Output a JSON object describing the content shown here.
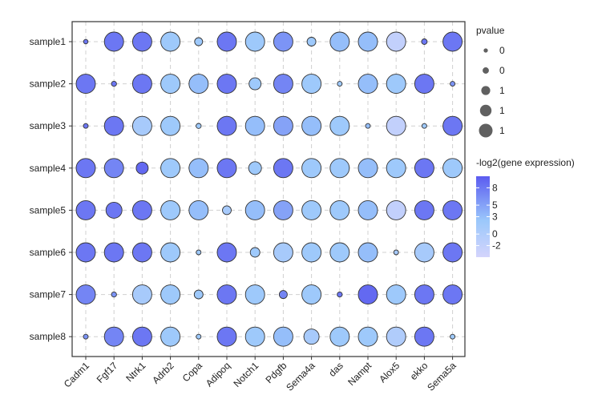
{
  "chart_data": {
    "type": "dot",
    "title": "",
    "xlabel": "",
    "ylabel": "",
    "genes": [
      "Cadm1",
      "Fgf17",
      "Ntrk1",
      "Adrb2",
      "Copa",
      "Adipoq",
      "Notch1",
      "Pdgfb",
      "Sema4a",
      "das",
      "Nampt",
      "Alox5",
      "ekko",
      "Sema5a"
    ],
    "samples": [
      "sample1",
      "sample2",
      "sample3",
      "sample4",
      "sample5",
      "sample6",
      "sample7",
      "sample8"
    ],
    "size_legend": {
      "title": "pvalue",
      "labels": [
        "0",
        "0",
        "1",
        "1",
        "1"
      ],
      "values": [
        0.1,
        0.3,
        0.55,
        0.8,
        1.0
      ]
    },
    "color_legend": {
      "title": "-log2(gene expression)",
      "ticks": [
        8,
        5,
        3,
        0,
        -2
      ],
      "tick_labels": [
        "8",
        "5",
        "3",
        "0",
        "-2"
      ],
      "range": [
        -4,
        10
      ],
      "low_color": "#d4d4fc",
      "mid_color": "#9bc8fb",
      "high_color": "#5b5bf0"
    },
    "grid": true,
    "dots": [
      {
        "sample": "sample1",
        "gene": "Cadm1",
        "size": 0.08,
        "value": 8
      },
      {
        "sample": "sample1",
        "gene": "Fgf17",
        "size": 1.0,
        "value": 8
      },
      {
        "sample": "sample1",
        "gene": "Ntrk1",
        "size": 1.0,
        "value": 8
      },
      {
        "sample": "sample1",
        "gene": "Adrb2",
        "size": 1.0,
        "value": 2
      },
      {
        "sample": "sample1",
        "gene": "Copa",
        "size": 0.3,
        "value": 2
      },
      {
        "sample": "sample1",
        "gene": "Adipoq",
        "size": 1.0,
        "value": 8
      },
      {
        "sample": "sample1",
        "gene": "Notch1",
        "size": 1.0,
        "value": 2
      },
      {
        "sample": "sample1",
        "gene": "Pdgfb",
        "size": 1.0,
        "value": 6
      },
      {
        "sample": "sample1",
        "gene": "Sema4a",
        "size": 0.35,
        "value": 2
      },
      {
        "sample": "sample1",
        "gene": "das",
        "size": 1.0,
        "value": 3
      },
      {
        "sample": "sample1",
        "gene": "Nampt",
        "size": 1.0,
        "value": 3
      },
      {
        "sample": "sample1",
        "gene": "Alox5",
        "size": 1.0,
        "value": -2
      },
      {
        "sample": "sample1",
        "gene": "ekko",
        "size": 0.15,
        "value": 8
      },
      {
        "sample": "sample1",
        "gene": "Sema5a",
        "size": 1.0,
        "value": 8
      },
      {
        "sample": "sample2",
        "gene": "Cadm1",
        "size": 1.0,
        "value": 8
      },
      {
        "sample": "sample2",
        "gene": "Fgf17",
        "size": 0.12,
        "value": 8
      },
      {
        "sample": "sample2",
        "gene": "Ntrk1",
        "size": 1.0,
        "value": 8
      },
      {
        "sample": "sample2",
        "gene": "Adrb2",
        "size": 1.0,
        "value": 2
      },
      {
        "sample": "sample2",
        "gene": "Copa",
        "size": 1.0,
        "value": 3
      },
      {
        "sample": "sample2",
        "gene": "Adipoq",
        "size": 1.0,
        "value": 8
      },
      {
        "sample": "sample2",
        "gene": "Notch1",
        "size": 0.55,
        "value": 2
      },
      {
        "sample": "sample2",
        "gene": "Pdgfb",
        "size": 1.0,
        "value": 7
      },
      {
        "sample": "sample2",
        "gene": "Sema4a",
        "size": 1.0,
        "value": 2
      },
      {
        "sample": "sample2",
        "gene": "das",
        "size": 0.1,
        "value": 2
      },
      {
        "sample": "sample2",
        "gene": "Nampt",
        "size": 1.0,
        "value": 3
      },
      {
        "sample": "sample2",
        "gene": "Alox5",
        "size": 1.0,
        "value": 2
      },
      {
        "sample": "sample2",
        "gene": "ekko",
        "size": 1.0,
        "value": 8
      },
      {
        "sample": "sample2",
        "gene": "Sema5a",
        "size": 0.1,
        "value": 6
      },
      {
        "sample": "sample3",
        "gene": "Cadm1",
        "size": 0.1,
        "value": 8
      },
      {
        "sample": "sample3",
        "gene": "Fgf17",
        "size": 1.0,
        "value": 8
      },
      {
        "sample": "sample3",
        "gene": "Ntrk1",
        "size": 1.0,
        "value": 1
      },
      {
        "sample": "sample3",
        "gene": "Adrb2",
        "size": 1.0,
        "value": 2
      },
      {
        "sample": "sample3",
        "gene": "Copa",
        "size": 0.12,
        "value": 2
      },
      {
        "sample": "sample3",
        "gene": "Adipoq",
        "size": 1.0,
        "value": 8
      },
      {
        "sample": "sample3",
        "gene": "Notch1",
        "size": 1.0,
        "value": 3
      },
      {
        "sample": "sample3",
        "gene": "Pdgfb",
        "size": 1.0,
        "value": 5
      },
      {
        "sample": "sample3",
        "gene": "Sema4a",
        "size": 1.0,
        "value": 3
      },
      {
        "sample": "sample3",
        "gene": "das",
        "size": 1.0,
        "value": 2
      },
      {
        "sample": "sample3",
        "gene": "Nampt",
        "size": 0.1,
        "value": 3
      },
      {
        "sample": "sample3",
        "gene": "Alox5",
        "size": 1.0,
        "value": -2
      },
      {
        "sample": "sample3",
        "gene": "ekko",
        "size": 0.1,
        "value": 2
      },
      {
        "sample": "sample3",
        "gene": "Sema5a",
        "size": 1.0,
        "value": 8
      },
      {
        "sample": "sample4",
        "gene": "Cadm1",
        "size": 1.0,
        "value": 8
      },
      {
        "sample": "sample4",
        "gene": "Fgf17",
        "size": 1.0,
        "value": 7
      },
      {
        "sample": "sample4",
        "gene": "Ntrk1",
        "size": 0.55,
        "value": 9
      },
      {
        "sample": "sample4",
        "gene": "Adrb2",
        "size": 1.0,
        "value": 2
      },
      {
        "sample": "sample4",
        "gene": "Copa",
        "size": 1.0,
        "value": 3
      },
      {
        "sample": "sample4",
        "gene": "Adipoq",
        "size": 1.0,
        "value": 8
      },
      {
        "sample": "sample4",
        "gene": "Notch1",
        "size": 0.6,
        "value": 2
      },
      {
        "sample": "sample4",
        "gene": "Pdgfb",
        "size": 1.0,
        "value": 8
      },
      {
        "sample": "sample4",
        "gene": "Sema4a",
        "size": 1.0,
        "value": 2
      },
      {
        "sample": "sample4",
        "gene": "das",
        "size": 1.0,
        "value": 2
      },
      {
        "sample": "sample4",
        "gene": "Nampt",
        "size": 1.0,
        "value": 3
      },
      {
        "sample": "sample4",
        "gene": "Alox5",
        "size": 1.0,
        "value": 2
      },
      {
        "sample": "sample4",
        "gene": "ekko",
        "size": 1.0,
        "value": 8
      },
      {
        "sample": "sample4",
        "gene": "Sema5a",
        "size": 1.0,
        "value": 2
      },
      {
        "sample": "sample5",
        "gene": "Cadm1",
        "size": 1.0,
        "value": 8
      },
      {
        "sample": "sample5",
        "gene": "Fgf17",
        "size": 0.8,
        "value": 8
      },
      {
        "sample": "sample5",
        "gene": "Ntrk1",
        "size": 1.0,
        "value": 8
      },
      {
        "sample": "sample5",
        "gene": "Adrb2",
        "size": 1.0,
        "value": 2
      },
      {
        "sample": "sample5",
        "gene": "Copa",
        "size": 1.0,
        "value": 3
      },
      {
        "sample": "sample5",
        "gene": "Adipoq",
        "size": 0.35,
        "value": 1
      },
      {
        "sample": "sample5",
        "gene": "Notch1",
        "size": 1.0,
        "value": 3
      },
      {
        "sample": "sample5",
        "gene": "Pdgfb",
        "size": 1.0,
        "value": 5
      },
      {
        "sample": "sample5",
        "gene": "Sema4a",
        "size": 1.0,
        "value": 2
      },
      {
        "sample": "sample5",
        "gene": "das",
        "size": 1.0,
        "value": 2
      },
      {
        "sample": "sample5",
        "gene": "Nampt",
        "size": 1.0,
        "value": 3
      },
      {
        "sample": "sample5",
        "gene": "Alox5",
        "size": 1.0,
        "value": -2
      },
      {
        "sample": "sample5",
        "gene": "ekko",
        "size": 1.0,
        "value": 8
      },
      {
        "sample": "sample5",
        "gene": "Sema5a",
        "size": 1.0,
        "value": 8
      },
      {
        "sample": "sample6",
        "gene": "Cadm1",
        "size": 1.0,
        "value": 8
      },
      {
        "sample": "sample6",
        "gene": "Fgf17",
        "size": 1.0,
        "value": 8
      },
      {
        "sample": "sample6",
        "gene": "Ntrk1",
        "size": 1.0,
        "value": 8
      },
      {
        "sample": "sample6",
        "gene": "Adrb2",
        "size": 1.0,
        "value": 2
      },
      {
        "sample": "sample6",
        "gene": "Copa",
        "size": 0.1,
        "value": 2
      },
      {
        "sample": "sample6",
        "gene": "Adipoq",
        "size": 1.0,
        "value": 8
      },
      {
        "sample": "sample6",
        "gene": "Notch1",
        "size": 0.4,
        "value": 2
      },
      {
        "sample": "sample6",
        "gene": "Pdgfb",
        "size": 1.0,
        "value": 1
      },
      {
        "sample": "sample6",
        "gene": "Sema4a",
        "size": 1.0,
        "value": 2
      },
      {
        "sample": "sample6",
        "gene": "das",
        "size": 1.0,
        "value": 2
      },
      {
        "sample": "sample6",
        "gene": "Nampt",
        "size": 1.0,
        "value": 3
      },
      {
        "sample": "sample6",
        "gene": "Alox5",
        "size": 0.1,
        "value": 1
      },
      {
        "sample": "sample6",
        "gene": "ekko",
        "size": 1.0,
        "value": 1
      },
      {
        "sample": "sample6",
        "gene": "Sema5a",
        "size": 1.0,
        "value": 8
      },
      {
        "sample": "sample7",
        "gene": "Cadm1",
        "size": 1.0,
        "value": 7
      },
      {
        "sample": "sample7",
        "gene": "Fgf17",
        "size": 0.12,
        "value": 6
      },
      {
        "sample": "sample7",
        "gene": "Ntrk1",
        "size": 1.0,
        "value": 1
      },
      {
        "sample": "sample7",
        "gene": "Adrb2",
        "size": 1.0,
        "value": 2
      },
      {
        "sample": "sample7",
        "gene": "Copa",
        "size": 0.35,
        "value": 2
      },
      {
        "sample": "sample7",
        "gene": "Adipoq",
        "size": 1.0,
        "value": 8
      },
      {
        "sample": "sample7",
        "gene": "Notch1",
        "size": 1.0,
        "value": 2
      },
      {
        "sample": "sample7",
        "gene": "Pdgfb",
        "size": 0.3,
        "value": 7
      },
      {
        "sample": "sample7",
        "gene": "Sema4a",
        "size": 1.0,
        "value": 2
      },
      {
        "sample": "sample7",
        "gene": "das",
        "size": 0.12,
        "value": 8
      },
      {
        "sample": "sample7",
        "gene": "Nampt",
        "size": 1.0,
        "value": 9
      },
      {
        "sample": "sample7",
        "gene": "Alox5",
        "size": 1.0,
        "value": 2
      },
      {
        "sample": "sample7",
        "gene": "ekko",
        "size": 1.0,
        "value": 8
      },
      {
        "sample": "sample7",
        "gene": "Sema5a",
        "size": 1.0,
        "value": 8
      },
      {
        "sample": "sample8",
        "gene": "Cadm1",
        "size": 0.1,
        "value": 6
      },
      {
        "sample": "sample8",
        "gene": "Fgf17",
        "size": 1.0,
        "value": 7
      },
      {
        "sample": "sample8",
        "gene": "Ntrk1",
        "size": 1.0,
        "value": 8
      },
      {
        "sample": "sample8",
        "gene": "Adrb2",
        "size": 1.0,
        "value": 2
      },
      {
        "sample": "sample8",
        "gene": "Copa",
        "size": 0.1,
        "value": 2
      },
      {
        "sample": "sample8",
        "gene": "Adipoq",
        "size": 1.0,
        "value": 8
      },
      {
        "sample": "sample8",
        "gene": "Notch1",
        "size": 1.0,
        "value": 2
      },
      {
        "sample": "sample8",
        "gene": "Pdgfb",
        "size": 1.0,
        "value": 3
      },
      {
        "sample": "sample8",
        "gene": "Sema4a",
        "size": 0.75,
        "value": 1
      },
      {
        "sample": "sample8",
        "gene": "das",
        "size": 1.0,
        "value": 2
      },
      {
        "sample": "sample8",
        "gene": "Nampt",
        "size": 1.0,
        "value": 2
      },
      {
        "sample": "sample8",
        "gene": "Alox5",
        "size": 1.0,
        "value": 0
      },
      {
        "sample": "sample8",
        "gene": "ekko",
        "size": 1.0,
        "value": 8
      },
      {
        "sample": "sample8",
        "gene": "Sema5a",
        "size": 0.1,
        "value": 2
      }
    ]
  }
}
